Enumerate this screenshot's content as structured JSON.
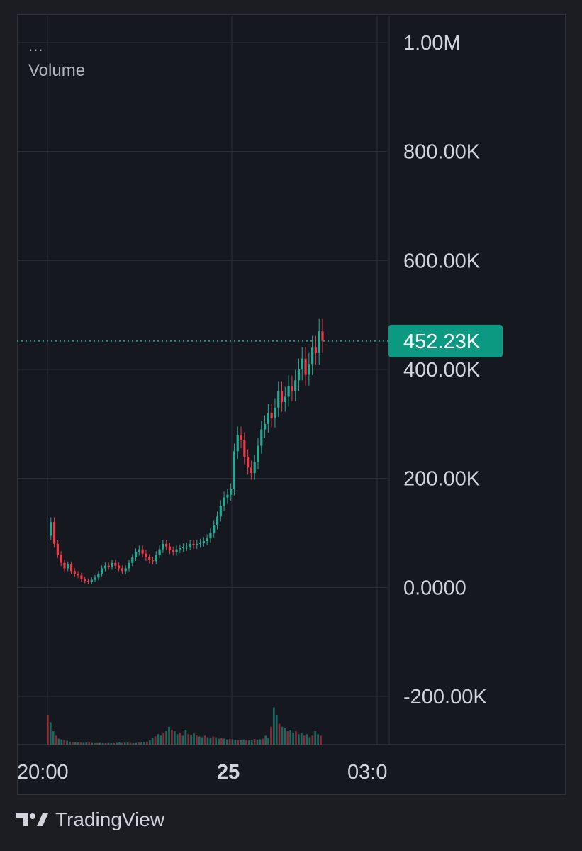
{
  "legend": {
    "dots": "...",
    "label": "Volume"
  },
  "brand": {
    "name": "TradingView"
  },
  "colors": {
    "background": "#161820",
    "grid": "#2a2e39",
    "up": "#22ab94",
    "down": "#f23645",
    "text": "#d1d4dc",
    "badge": "#0b9981"
  },
  "chart_data": {
    "type": "line",
    "title": "",
    "xlabel": "",
    "ylabel": "",
    "y_axis": {
      "ticks": [
        "1.00M",
        "800.00K",
        "600.00K",
        "400.00K",
        "200.00K",
        "0.0000",
        "-200.00K"
      ],
      "tick_values": [
        1000000,
        800000,
        600000,
        400000,
        200000,
        0,
        -200000
      ],
      "range": [
        -290000,
        1040000
      ]
    },
    "x_axis": {
      "ticks": [
        {
          "label": "20:00",
          "bold": false
        },
        {
          "label": "25",
          "bold": true
        },
        {
          "label": "03:0",
          "bold": false
        }
      ]
    },
    "last_value": {
      "label": "452.23K",
      "value": 452230
    },
    "series": [
      {
        "values": [
          [
            0,
            95000
          ],
          [
            1,
            120000
          ],
          [
            2,
            80000
          ],
          [
            3,
            60000
          ],
          [
            4,
            45000
          ],
          [
            5,
            35000
          ],
          [
            6,
            42000
          ],
          [
            7,
            30000
          ],
          [
            8,
            25000
          ],
          [
            9,
            22000
          ],
          [
            10,
            15000
          ],
          [
            11,
            12000
          ],
          [
            12,
            10000
          ],
          [
            13,
            14000
          ],
          [
            14,
            18000
          ],
          [
            15,
            25000
          ],
          [
            16,
            35000
          ],
          [
            17,
            40000
          ],
          [
            18,
            38000
          ],
          [
            19,
            45000
          ],
          [
            20,
            40000
          ],
          [
            21,
            35000
          ],
          [
            22,
            30000
          ],
          [
            23,
            35000
          ],
          [
            24,
            45000
          ],
          [
            25,
            55000
          ],
          [
            26,
            65000
          ],
          [
            27,
            70000
          ],
          [
            28,
            62000
          ],
          [
            29,
            55000
          ],
          [
            30,
            50000
          ],
          [
            31,
            48000
          ],
          [
            32,
            60000
          ],
          [
            33,
            70000
          ],
          [
            34,
            80000
          ],
          [
            35,
            75000
          ],
          [
            36,
            68000
          ],
          [
            37,
            65000
          ],
          [
            38,
            70000
          ],
          [
            39,
            72000
          ],
          [
            40,
            74000
          ],
          [
            41,
            75000
          ],
          [
            42,
            80000
          ],
          [
            43,
            78000
          ],
          [
            44,
            80000
          ],
          [
            45,
            82000
          ],
          [
            46,
            85000
          ],
          [
            47,
            90000
          ],
          [
            48,
            100000
          ],
          [
            49,
            115000
          ],
          [
            50,
            130000
          ],
          [
            51,
            150000
          ],
          [
            52,
            165000
          ],
          [
            53,
            170000
          ],
          [
            54,
            180000
          ],
          [
            55,
            250000
          ],
          [
            56,
            280000
          ],
          [
            57,
            270000
          ],
          [
            58,
            240000
          ],
          [
            59,
            220000
          ],
          [
            60,
            210000
          ],
          [
            61,
            230000
          ],
          [
            62,
            260000
          ],
          [
            63,
            290000
          ],
          [
            64,
            300000
          ],
          [
            65,
            320000
          ],
          [
            66,
            310000
          ],
          [
            67,
            330000
          ],
          [
            68,
            360000
          ],
          [
            69,
            340000
          ],
          [
            70,
            350000
          ],
          [
            71,
            370000
          ],
          [
            72,
            360000
          ],
          [
            73,
            380000
          ],
          [
            74,
            400000
          ],
          [
            75,
            420000
          ],
          [
            76,
            390000
          ],
          [
            77,
            410000
          ],
          [
            78,
            440000
          ],
          [
            79,
            430000
          ],
          [
            80,
            470000
          ],
          [
            81,
            452230
          ]
        ]
      }
    ],
    "volume": [
      200000,
      150000,
      90000,
      60000,
      40000,
      35000,
      30000,
      25000,
      20000,
      18000,
      15000,
      14000,
      13000,
      12000,
      14000,
      16000,
      12000,
      10000,
      11000,
      12000,
      10000,
      9000,
      11000,
      9000,
      10000,
      12000,
      14000,
      11000,
      13000,
      15000,
      12000,
      10000,
      11000,
      14000,
      16000,
      18000,
      20000,
      30000,
      45000,
      55000,
      70000,
      60000,
      80000,
      90000,
      120000,
      100000,
      90000,
      70000,
      80000,
      60000,
      100000,
      70000,
      65000,
      75000,
      60000,
      55000,
      50000,
      60000,
      50000,
      45000,
      55000,
      50000,
      40000,
      45000,
      40000,
      35000,
      38000,
      36000,
      32000,
      30000,
      32000,
      35000,
      30000,
      28000,
      32000,
      38000,
      34000,
      36000,
      40000,
      60000,
      45000,
      120000,
      250000,
      200000,
      140000,
      120000,
      110000,
      90000,
      100000,
      80000,
      90000,
      70000,
      80000,
      60000,
      70000,
      50000,
      60000,
      90000,
      70000,
      60000
    ]
  }
}
